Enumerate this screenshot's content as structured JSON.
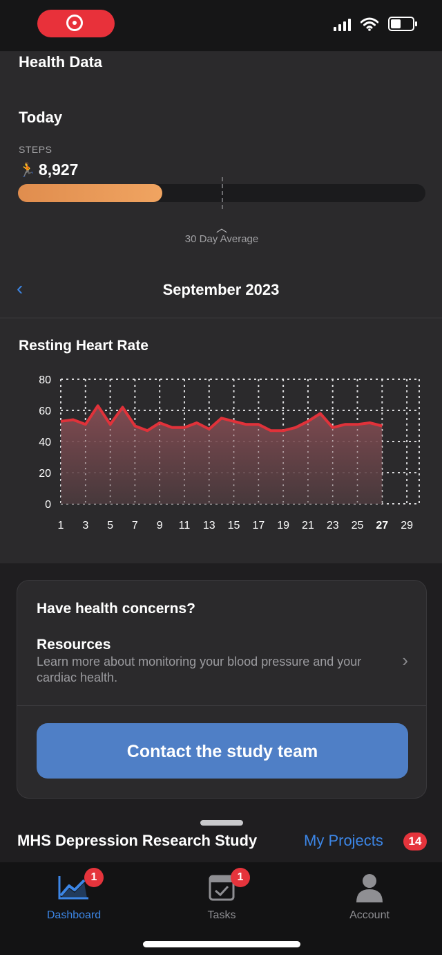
{
  "colors": {
    "accent": "#3c86e6",
    "steps_bar": "#f0a461",
    "heart_line": "#e0323a",
    "badge": "#e5343c",
    "button": "#4f7fc6"
  },
  "header": {
    "title": "Health Data"
  },
  "today": {
    "label": "Today",
    "steps_label": "STEPS",
    "steps_icon": "runner-icon",
    "steps_value": "8,927",
    "steps_progress": 0.355,
    "avg_label": "30 Day Average",
    "avg_marker_fraction": 0.5
  },
  "month": {
    "label": "September 2023"
  },
  "chart_data": {
    "type": "area",
    "title": "Resting Heart Rate",
    "x": [
      1,
      2,
      3,
      4,
      5,
      6,
      7,
      8,
      9,
      10,
      11,
      12,
      13,
      14,
      15,
      16,
      17,
      18,
      19,
      20,
      21,
      22,
      23,
      24,
      25,
      26,
      27
    ],
    "y": [
      53,
      54,
      51,
      63,
      51,
      62,
      50,
      47,
      52,
      49,
      49,
      52,
      48,
      55,
      53,
      51,
      51,
      47,
      47,
      49,
      53,
      58,
      49,
      51,
      51,
      52,
      50
    ],
    "x_ticks": [
      "1",
      "3",
      "5",
      "7",
      "9",
      "11",
      "13",
      "15",
      "17",
      "19",
      "21",
      "23",
      "25",
      "27",
      "29"
    ],
    "y_ticks": [
      "0",
      "20",
      "40",
      "60",
      "80"
    ],
    "xlim": [
      1,
      30
    ],
    "ylim": [
      0,
      80
    ],
    "highlight_tick": "27",
    "grid": true
  },
  "concerns_card": {
    "title": "Have health concerns?",
    "resources_title": "Resources",
    "resources_desc": "Learn more about monitoring your blood pressure and your cardiac health.",
    "contact_button": "Contact the study team"
  },
  "footer": {
    "study_name": "MHS Depression Research Study",
    "projects_link": "My Projects",
    "projects_count": "14"
  },
  "tabs": [
    {
      "label": "Dashboard",
      "icon": "chart-icon",
      "badge": "1",
      "active": true
    },
    {
      "label": "Tasks",
      "icon": "calendar-check-icon",
      "badge": "1",
      "active": false
    },
    {
      "label": "Account",
      "icon": "person-icon",
      "badge": "",
      "active": false
    }
  ]
}
